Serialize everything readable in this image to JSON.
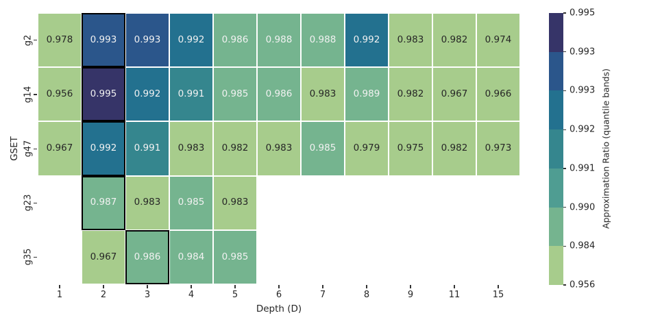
{
  "figure": {
    "background": "#ffffff",
    "text_color": "#262626"
  },
  "chart_data": {
    "type": "heatmap",
    "title": "",
    "xlabel": "Depth (D)",
    "ylabel": "GSET",
    "columns": [
      "1",
      "2",
      "3",
      "4",
      "5",
      "6",
      "7",
      "8",
      "9",
      "11",
      "15"
    ],
    "rows": [
      "g2",
      "g14",
      "g47",
      "g23",
      "g35"
    ],
    "values": [
      [
        0.978,
        0.993,
        0.993,
        0.992,
        0.986,
        0.988,
        0.988,
        0.992,
        0.983,
        0.982,
        0.974
      ],
      [
        0.956,
        0.995,
        0.992,
        0.991,
        0.985,
        0.986,
        0.983,
        0.989,
        0.982,
        0.967,
        0.966
      ],
      [
        0.967,
        0.992,
        0.991,
        0.983,
        0.982,
        0.983,
        0.985,
        0.979,
        0.975,
        0.982,
        0.973
      ],
      [
        null,
        0.987,
        0.983,
        0.985,
        0.983,
        null,
        null,
        null,
        null,
        null,
        null
      ],
      [
        null,
        0.967,
        0.986,
        0.984,
        0.985,
        null,
        null,
        null,
        null,
        null,
        null
      ]
    ],
    "highlighted_cells": [
      [
        0,
        1
      ],
      [
        1,
        1
      ],
      [
        2,
        1
      ],
      [
        3,
        1
      ],
      [
        4,
        2
      ]
    ],
    "value_decimals": 3,
    "color_bands": [
      {
        "gte": 0.994,
        "color": "#363468"
      },
      {
        "gte": 0.993,
        "color": "#2b568b"
      },
      {
        "gte": 0.992,
        "color": "#23718f"
      },
      {
        "gte": 0.991,
        "color": "#35868e"
      },
      {
        "gte": 0.99,
        "color": "#4f9d92"
      },
      {
        "gte": 0.984,
        "color": "#75b48f"
      },
      {
        "gte": 0.0,
        "color": "#a7cc8c"
      }
    ],
    "annotation_text_light": "#f2f2f2",
    "annotation_text_dark": "#262626",
    "light_text_threshold": 0.984,
    "highlight_border_color": "#000000",
    "colorbar": {
      "label": "Approximation Ratio (quantile bands)",
      "tick_labels_top_to_bottom": [
        "0.995",
        "0.993",
        "0.993",
        "0.992",
        "0.991",
        "0.990",
        "0.984",
        "0.956"
      ],
      "band_colors_top_to_bottom": [
        "#363468",
        "#2b568b",
        "#23718f",
        "#35868e",
        "#4f9d92",
        "#75b48f",
        "#a7cc8c"
      ],
      "position": "right"
    },
    "axis_ranges": {
      "grid": false,
      "legend": "colorbar-right"
    }
  }
}
